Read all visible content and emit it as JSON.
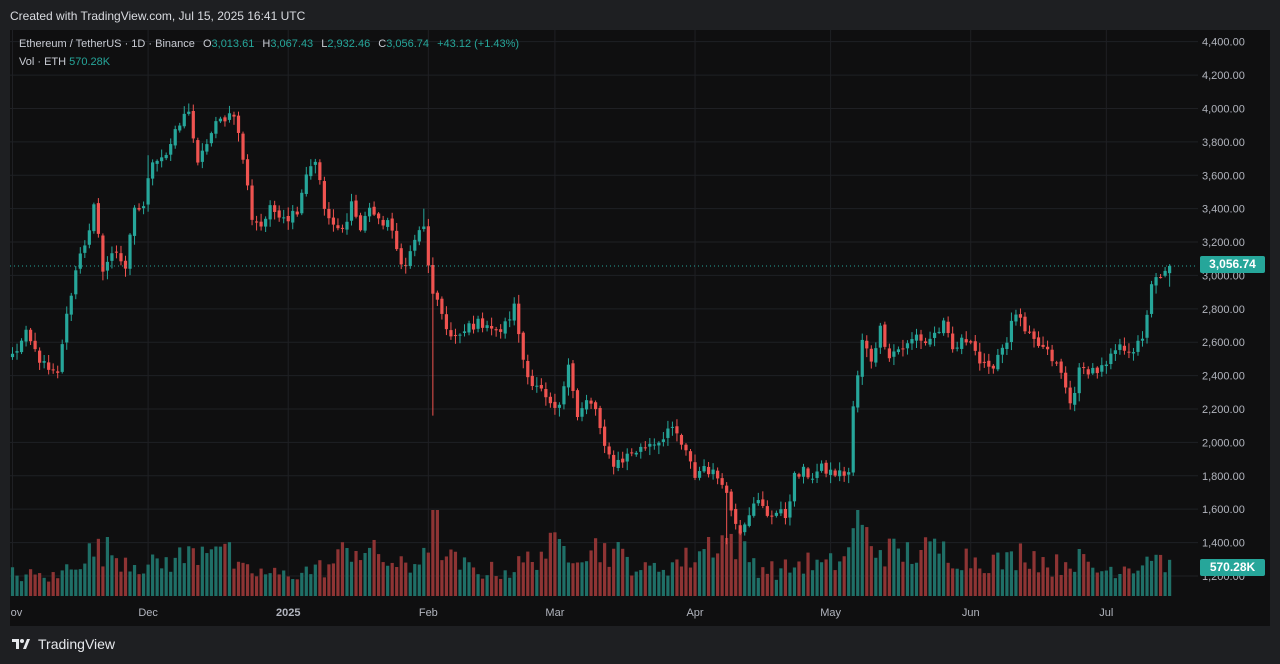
{
  "header": {
    "created_text": "Created with TradingView.com, Jul 15, 2025 16:41 UTC"
  },
  "legend": {
    "symbol": "Ethereum / TetherUS · 1D · Binance",
    "open_label": "O",
    "open_value": "3,013.61",
    "high_label": "H",
    "high_value": "3,067.43",
    "low_label": "L",
    "low_value": "2,932.46",
    "close_label": "C",
    "close_value": "3,056.74",
    "change_value": "+43.12 (+1.43%)",
    "volume_label": "Vol · ETH",
    "volume_value": "570.28K"
  },
  "price_tag": "3,056.74",
  "volume_tag": "570.28K",
  "footer": {
    "brand": "TradingView"
  },
  "colors": {
    "up": "#26a69a",
    "down": "#ef5350",
    "vol_up": "#1f6f67",
    "vol_down": "#8e3434",
    "grid": "#1f2024",
    "background": "#0f0f10",
    "axis_text": "#b2b5be"
  },
  "chart_data": {
    "type": "candlestick",
    "ylim": [
      1080,
      4470
    ],
    "y_ticks": [
      "4,400.00",
      "4,200.00",
      "4,000.00",
      "3,800.00",
      "3,600.00",
      "3,400.00",
      "3,200.00",
      "3,000.00",
      "2,800.00",
      "2,600.00",
      "2,400.00",
      "2,200.00",
      "2,000.00",
      "1,800.00",
      "1,600.00",
      "1,400.00",
      "1,200.00"
    ],
    "y_tick_values": [
      4400,
      4200,
      4000,
      3800,
      3600,
      3400,
      3200,
      3000,
      2800,
      2600,
      2400,
      2200,
      2000,
      1800,
      1600,
      1400,
      1200
    ],
    "x_ticks": [
      {
        "label": "Nov",
        "index": 0
      },
      {
        "label": "Dec",
        "index": 30
      },
      {
        "label": "2025",
        "index": 61
      },
      {
        "label": "Feb",
        "index": 92
      },
      {
        "label": "Mar",
        "index": 120
      },
      {
        "label": "Apr",
        "index": 151
      },
      {
        "label": "May",
        "index": 181
      },
      {
        "label": "Jun",
        "index": 212
      },
      {
        "label": "Jul",
        "index": 242
      }
    ],
    "start_date": "2024-10-31",
    "close_keyframes": [
      [
        0,
        2520
      ],
      [
        3,
        2640
      ],
      [
        6,
        2500
      ],
      [
        8,
        2420
      ],
      [
        10,
        2400
      ],
      [
        11,
        2600
      ],
      [
        13,
        2900
      ],
      [
        15,
        3150
      ],
      [
        17,
        3250
      ],
      [
        18,
        3400
      ],
      [
        20,
        3050
      ],
      [
        23,
        3150
      ],
      [
        25,
        3050
      ],
      [
        27,
        3380
      ],
      [
        29,
        3420
      ],
      [
        31,
        3700
      ],
      [
        34,
        3730
      ],
      [
        37,
        3900
      ],
      [
        39,
        4000
      ],
      [
        41,
        3650
      ],
      [
        43,
        3800
      ],
      [
        45,
        3900
      ],
      [
        47,
        3950
      ],
      [
        49,
        3980
      ],
      [
        51,
        3700
      ],
      [
        53,
        3350
      ],
      [
        55,
        3300
      ],
      [
        57,
        3390
      ],
      [
        59,
        3380
      ],
      [
        61,
        3350
      ],
      [
        63,
        3400
      ],
      [
        65,
        3620
      ],
      [
        67,
        3700
      ],
      [
        69,
        3400
      ],
      [
        71,
        3280
      ],
      [
        73,
        3270
      ],
      [
        75,
        3440
      ],
      [
        77,
        3270
      ],
      [
        79,
        3420
      ],
      [
        81,
        3310
      ],
      [
        83,
        3330
      ],
      [
        85,
        3150
      ],
      [
        87,
        3050
      ],
      [
        89,
        3220
      ],
      [
        91,
        3280
      ],
      [
        93,
        2870
      ],
      [
        95,
        2770
      ],
      [
        97,
        2630
      ],
      [
        99,
        2620
      ],
      [
        101,
        2700
      ],
      [
        103,
        2710
      ],
      [
        105,
        2720
      ],
      [
        107,
        2650
      ],
      [
        109,
        2700
      ],
      [
        111,
        2810
      ],
      [
        113,
        2500
      ],
      [
        115,
        2350
      ],
      [
        117,
        2300
      ],
      [
        119,
        2200
      ],
      [
        121,
        2200
      ],
      [
        123,
        2500
      ],
      [
        125,
        2150
      ],
      [
        127,
        2240
      ],
      [
        129,
        2200
      ],
      [
        131,
        1950
      ],
      [
        133,
        1880
      ],
      [
        135,
        1900
      ],
      [
        137,
        1940
      ],
      [
        139,
        1960
      ],
      [
        141,
        2000
      ],
      [
        143,
        2010
      ],
      [
        145,
        2080
      ],
      [
        147,
        2040
      ],
      [
        149,
        1930
      ],
      [
        151,
        1800
      ],
      [
        153,
        1860
      ],
      [
        155,
        1810
      ],
      [
        157,
        1780
      ],
      [
        159,
        1600
      ],
      [
        161,
        1480
      ],
      [
        163,
        1590
      ],
      [
        165,
        1640
      ],
      [
        167,
        1570
      ],
      [
        169,
        1580
      ],
      [
        171,
        1560
      ],
      [
        173,
        1790
      ],
      [
        175,
        1820
      ],
      [
        177,
        1800
      ],
      [
        179,
        1840
      ],
      [
        181,
        1820
      ],
      [
        183,
        1810
      ],
      [
        185,
        1820
      ],
      [
        186,
        2200
      ],
      [
        188,
        2600
      ],
      [
        190,
        2500
      ],
      [
        192,
        2680
      ],
      [
        194,
        2530
      ],
      [
        196,
        2560
      ],
      [
        198,
        2580
      ],
      [
        200,
        2640
      ],
      [
        202,
        2600
      ],
      [
        204,
        2650
      ],
      [
        206,
        2700
      ],
      [
        208,
        2550
      ],
      [
        210,
        2600
      ],
      [
        212,
        2630
      ],
      [
        214,
        2480
      ],
      [
        216,
        2420
      ],
      [
        218,
        2530
      ],
      [
        220,
        2620
      ],
      [
        222,
        2780
      ],
      [
        224,
        2650
      ],
      [
        226,
        2600
      ],
      [
        228,
        2560
      ],
      [
        230,
        2500
      ],
      [
        232,
        2410
      ],
      [
        234,
        2230
      ],
      [
        236,
        2420
      ],
      [
        238,
        2440
      ],
      [
        240,
        2430
      ],
      [
        242,
        2450
      ],
      [
        244,
        2550
      ],
      [
        246,
        2570
      ],
      [
        248,
        2560
      ],
      [
        250,
        2600
      ],
      [
        251,
        2780
      ],
      [
        252,
        2960
      ],
      [
        254,
        2970
      ],
      [
        256,
        3056.74
      ]
    ],
    "special_candles": [
      {
        "index": 91,
        "high": 3400
      },
      {
        "index": 93,
        "low": 2160
      },
      {
        "index": 158,
        "low": 1390
      },
      {
        "index": 30,
        "high": 3720
      }
    ],
    "volume_profile": [
      [
        0,
        0.26
      ],
      [
        10,
        0.22
      ],
      [
        14,
        0.45
      ],
      [
        20,
        0.55
      ],
      [
        30,
        0.35
      ],
      [
        40,
        0.5
      ],
      [
        45,
        0.75
      ],
      [
        50,
        0.3
      ],
      [
        60,
        0.25
      ],
      [
        70,
        0.35
      ],
      [
        75,
        0.6
      ],
      [
        82,
        0.45
      ],
      [
        88,
        0.3
      ],
      [
        92,
        0.7
      ],
      [
        93,
        1.0
      ],
      [
        96,
        0.45
      ],
      [
        102,
        0.3
      ],
      [
        110,
        0.3
      ],
      [
        118,
        0.55
      ],
      [
        125,
        0.6
      ],
      [
        132,
        0.55
      ],
      [
        140,
        0.3
      ],
      [
        150,
        0.45
      ],
      [
        156,
        0.7
      ],
      [
        160,
        0.65
      ],
      [
        165,
        0.35
      ],
      [
        170,
        0.3
      ],
      [
        175,
        0.4
      ],
      [
        180,
        0.35
      ],
      [
        185,
        0.5
      ],
      [
        186,
        0.95
      ],
      [
        190,
        0.6
      ],
      [
        196,
        0.5
      ],
      [
        205,
        0.55
      ],
      [
        212,
        0.45
      ],
      [
        220,
        0.4
      ],
      [
        224,
        0.55
      ],
      [
        230,
        0.35
      ],
      [
        235,
        0.45
      ],
      [
        240,
        0.3
      ],
      [
        245,
        0.35
      ],
      [
        250,
        0.4
      ],
      [
        252,
        0.55
      ],
      [
        256,
        0.34
      ]
    ]
  }
}
